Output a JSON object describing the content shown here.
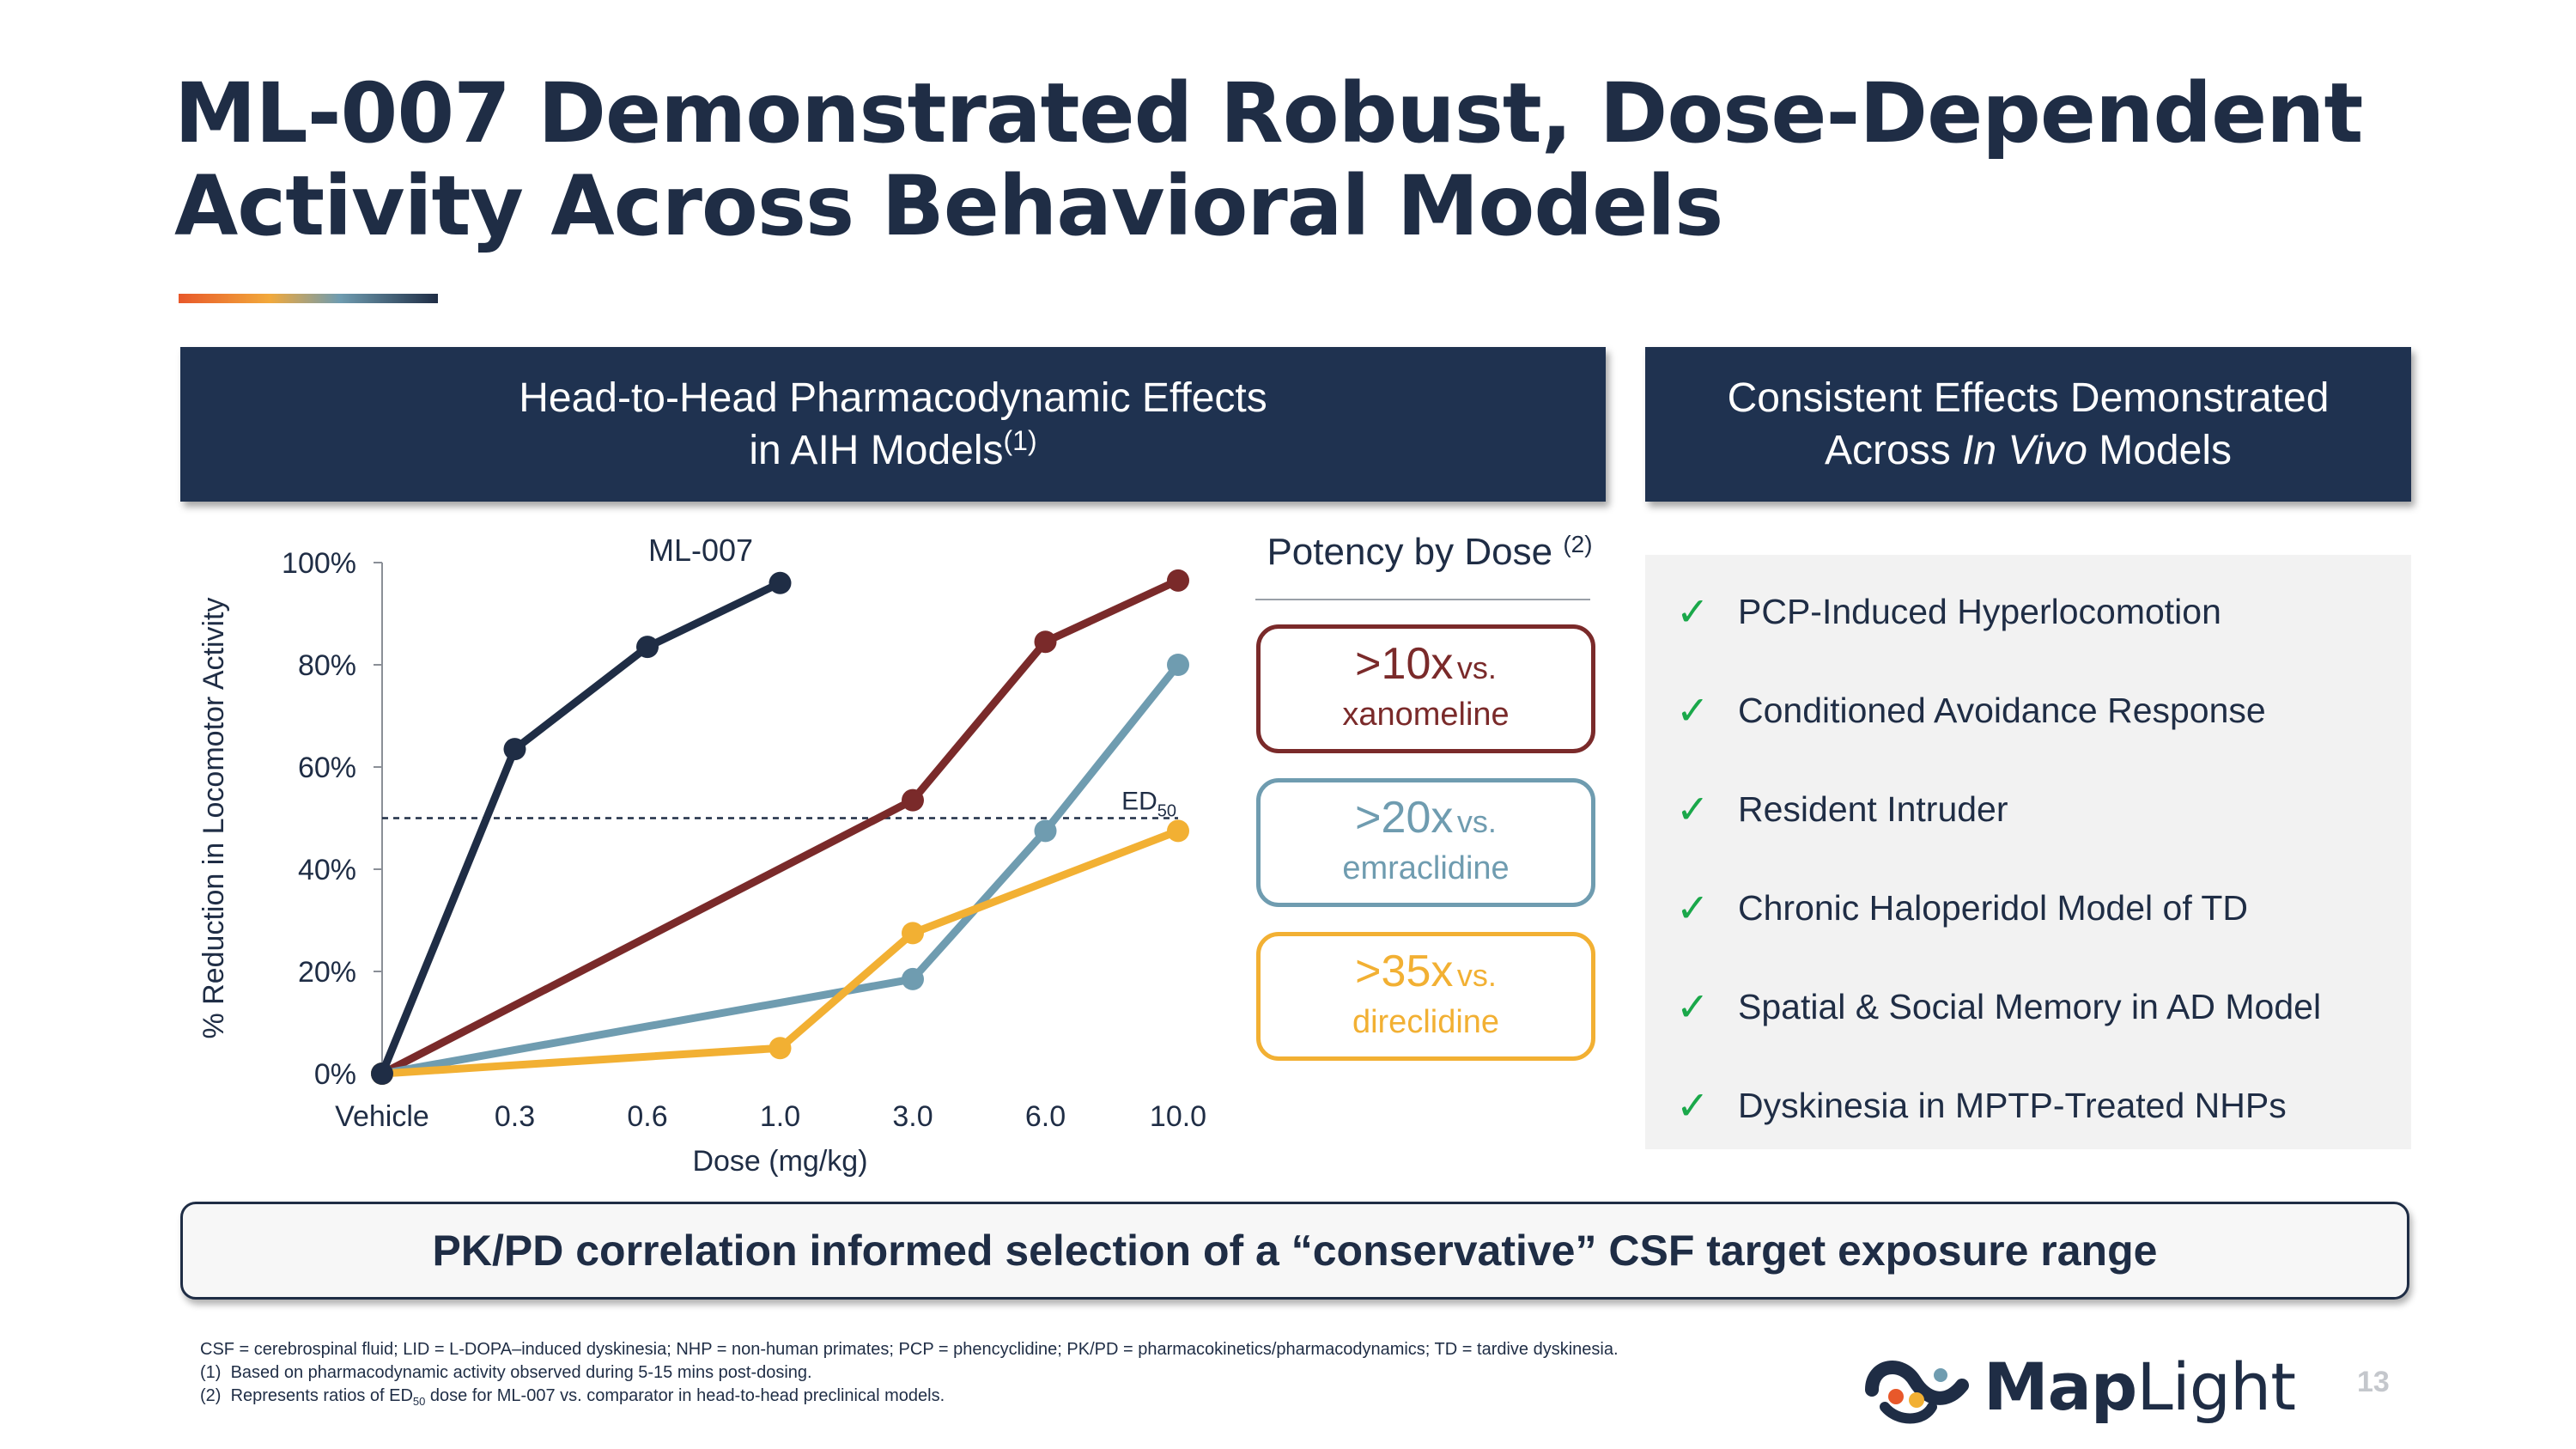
{
  "title": {
    "line1": "ML-007 Demonstrated Robust, Dose-Dependent",
    "line2": "Activity Across Behavioral Models"
  },
  "left_panel": {
    "header_line1": "Head-to-Head Pharmacodynamic Effects",
    "header_line2": "in AIH Models",
    "header_sup": "(1)"
  },
  "right_panel": {
    "header_line1": "Consistent Effects Demonstrated",
    "header_line2_pre": "Across ",
    "header_line2_em": "In Vivo",
    "header_line2_post": " Models",
    "models": [
      "PCP-Induced Hyperlocomotion",
      "Conditioned Avoidance Response",
      "Resident Intruder",
      "Chronic Haloperidol Model of TD",
      "Spatial & Social Memory in AD Model",
      "Dyskinesia in MPTP-Treated NHPs"
    ],
    "check_icon": "checkmark-icon"
  },
  "potency": {
    "title": "Potency by Dose",
    "title_sup": "(2)",
    "boxes": [
      {
        "big": ">10x",
        "small": "vs.",
        "comparator": "xanomeline",
        "color": "#7a2a2a"
      },
      {
        "big": ">20x",
        "small": "vs.",
        "comparator": "emraclidine",
        "color": "#6f9cb0"
      },
      {
        "big": ">35x",
        "small": "vs.",
        "comparator": "direclidine",
        "color": "#f2b033"
      }
    ]
  },
  "chart_data": {
    "type": "line",
    "xlabel": "Dose (mg/kg)",
    "ylabel": "% Reduction in Locomotor Activity",
    "categories": [
      "Vehicle",
      "0.3",
      "0.6",
      "1.0",
      "3.0",
      "6.0",
      "10.0"
    ],
    "ylim": [
      0,
      100
    ],
    "yticks": [
      "0%",
      "20%",
      "40%",
      "60%",
      "80%",
      "100%"
    ],
    "threshold": {
      "value": 50,
      "label": "ED",
      "label_sub": "50",
      "style": "dashed"
    },
    "series_label": "ML-007",
    "grid": false,
    "series": [
      {
        "key": "ml007",
        "color": "#1f2d45",
        "points": [
          [
            "Vehicle",
            0
          ],
          [
            "0.3",
            63.5
          ],
          [
            "0.6",
            83.5
          ],
          [
            "1.0",
            96
          ]
        ]
      },
      {
        "key": "xanomeline",
        "color": "#7a2a2a",
        "points": [
          [
            "Vehicle",
            0
          ],
          [
            "3.0",
            53.5
          ],
          [
            "6.0",
            84.5
          ],
          [
            "10.0",
            96.5
          ]
        ]
      },
      {
        "key": "emraclidine",
        "color": "#6f9cb0",
        "points": [
          [
            "Vehicle",
            0
          ],
          [
            "3.0",
            18.5
          ],
          [
            "6.0",
            47.5
          ],
          [
            "10.0",
            80
          ]
        ]
      },
      {
        "key": "direclidine",
        "color": "#f2b033",
        "points": [
          [
            "Vehicle",
            0
          ],
          [
            "1.0",
            5
          ],
          [
            "3.0",
            27.5
          ],
          [
            "10.0",
            47.5
          ]
        ]
      }
    ]
  },
  "banner": "PK/PD correlation informed selection of a “conservative” CSF target exposure range",
  "footnotes": {
    "abbrev": "CSF = cerebrospinal fluid; LID = L-DOPA–induced dyskinesia; NHP = non-human primates; PCP = phencyclidine; PK/PD = pharmacokinetics/pharmacodynamics; TD = tardive dyskinesia.",
    "note1_num": "(1)",
    "note1": "Based on pharmacodynamic activity observed during 5-15 mins post-dosing.",
    "note2_num": "(2)",
    "note2_pre": "Represents ratios of ED",
    "note2_sub": "50",
    "note2_post": " dose for ML-007 vs. comparator in head-to-head preclinical models."
  },
  "logo": {
    "text_bold": "Map",
    "text_light": "Light"
  },
  "page_number": "13",
  "colors": {
    "navy": "#1f2d45",
    "header_bg": "#1f3250",
    "check": "#1aa84a"
  }
}
